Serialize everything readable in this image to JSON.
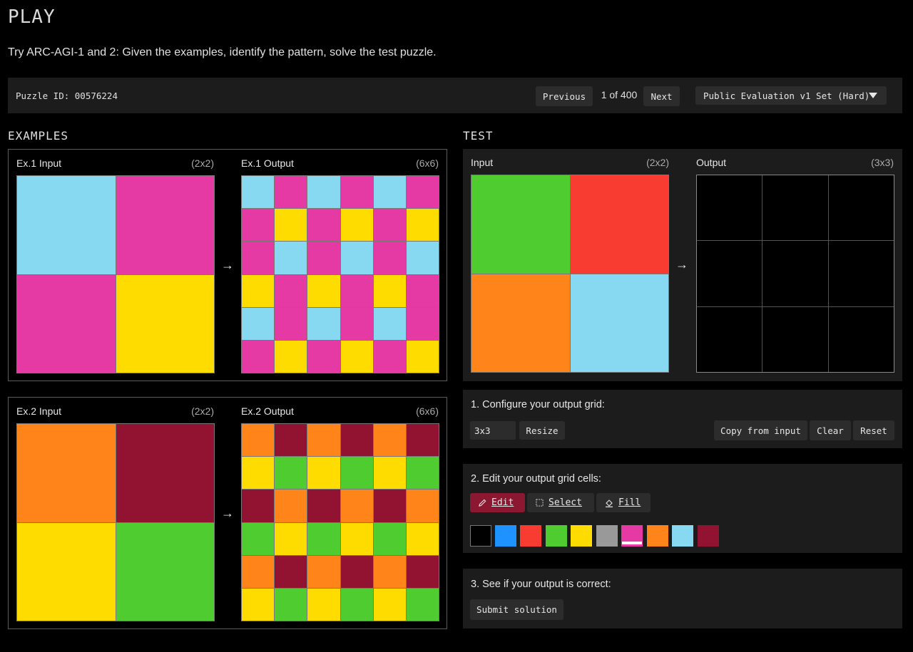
{
  "header": {
    "title": "PLAY",
    "subtitle": "Try ARC-AGI-1 and 2: Given the examples, identify the pattern, solve the test puzzle."
  },
  "puzzle_bar": {
    "puzzle_id": "Puzzle ID: 00576224",
    "previous_label": "Previous",
    "page_count": "1 of 400",
    "next_label": "Next",
    "set_select_value": "Public Evaluation v1 Set (Hard)"
  },
  "colors": {
    "k": "#000000",
    "b": "#1e93ff",
    "r": "#f93c31",
    "g": "#4fcc30",
    "y": "#ffdc00",
    "x": "#999999",
    "m": "#e53aa3",
    "o": "#ff851b",
    "c": "#87d8f1",
    "w": "#921231"
  },
  "examples": {
    "heading": "EXAMPLES",
    "items": [
      {
        "input_label": "Ex.1 Input",
        "input_size": "(2x2)",
        "output_label": "Ex.1 Output",
        "output_size": "(6x6)",
        "input_grid": [
          [
            "c",
            "m"
          ],
          [
            "m",
            "y"
          ]
        ],
        "output_grid": [
          [
            "c",
            "m",
            "c",
            "m",
            "c",
            "m"
          ],
          [
            "m",
            "y",
            "m",
            "y",
            "m",
            "y"
          ],
          [
            "m",
            "c",
            "m",
            "c",
            "m",
            "c"
          ],
          [
            "y",
            "m",
            "y",
            "m",
            "y",
            "m"
          ],
          [
            "c",
            "m",
            "c",
            "m",
            "c",
            "m"
          ],
          [
            "m",
            "y",
            "m",
            "y",
            "m",
            "y"
          ]
        ]
      },
      {
        "input_label": "Ex.2 Input",
        "input_size": "(2x2)",
        "output_label": "Ex.2 Output",
        "output_size": "(6x6)",
        "input_grid": [
          [
            "o",
            "w"
          ],
          [
            "y",
            "g"
          ]
        ],
        "output_grid": [
          [
            "o",
            "w",
            "o",
            "w",
            "o",
            "w"
          ],
          [
            "y",
            "g",
            "y",
            "g",
            "y",
            "g"
          ],
          [
            "w",
            "o",
            "w",
            "o",
            "w",
            "o"
          ],
          [
            "g",
            "y",
            "g",
            "y",
            "g",
            "y"
          ],
          [
            "o",
            "w",
            "o",
            "w",
            "o",
            "w"
          ],
          [
            "y",
            "g",
            "y",
            "g",
            "y",
            "g"
          ]
        ]
      }
    ]
  },
  "test": {
    "heading": "TEST",
    "input_label": "Input",
    "input_size": "(2x2)",
    "output_label": "Output",
    "output_size": "(3x3)",
    "input_grid": [
      [
        "g",
        "r"
      ],
      [
        "o",
        "c"
      ]
    ],
    "output_grid": [
      [
        "k",
        "k",
        "k"
      ],
      [
        "k",
        "k",
        "k"
      ],
      [
        "k",
        "k",
        "k"
      ]
    ]
  },
  "arrow": "→",
  "configure": {
    "title": "1. Configure your output grid:",
    "size_value": "3x3",
    "resize_label": "Resize",
    "copy_label": "Copy from input",
    "clear_label": "Clear",
    "reset_label": "Reset"
  },
  "edit": {
    "title": "2. Edit your output grid cells:",
    "edit_label": "Edit",
    "select_label": "Select",
    "fill_label": "Fill",
    "active_tool": "edit",
    "selected_color": "m",
    "palette": [
      "k",
      "b",
      "r",
      "g",
      "y",
      "x",
      "m",
      "o",
      "c",
      "w"
    ]
  },
  "submit": {
    "title": "3. See if your output is correct:",
    "submit_label": "Submit solution"
  }
}
